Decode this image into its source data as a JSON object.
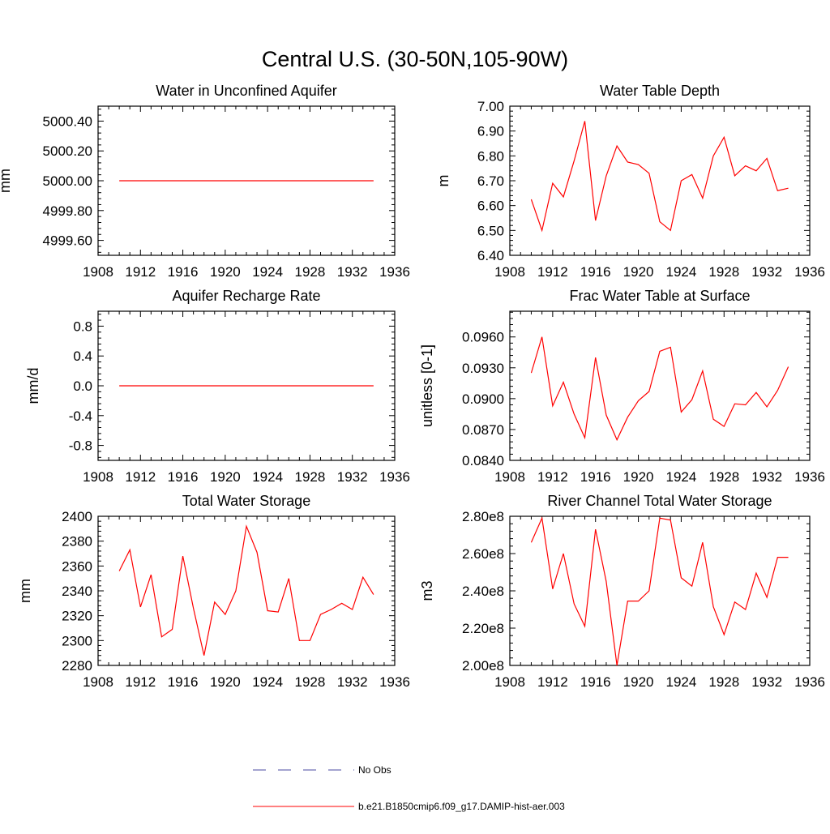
{
  "figure": {
    "title": "Central U.S. (30-50N,105-90W)"
  },
  "legend": {
    "items": [
      {
        "label": "No Obs",
        "color": "#4a4aa0",
        "style": "dashed"
      },
      {
        "label": "b.e21.B1850cmip6.f09_g17.DAMIP-hist-aer.003",
        "color": "#ff0000",
        "style": "solid"
      }
    ]
  },
  "chart_data": [
    {
      "type": "line",
      "title": "Water in Unconfined Aquifer",
      "ylabel": "mm",
      "xlim": [
        1908,
        1936
      ],
      "ylim": [
        4999.5,
        5000.5
      ],
      "xticks": [
        "1908",
        "1912",
        "1916",
        "1920",
        "1924",
        "1928",
        "1932",
        "1936"
      ],
      "yticks": [
        "4999.60",
        "4999.80",
        "5000.00",
        "5000.20",
        "5000.40"
      ],
      "series": [
        {
          "color": "#ff0000",
          "x": [
            1910,
            1911,
            1912,
            1913,
            1914,
            1915,
            1916,
            1917,
            1918,
            1919,
            1920,
            1921,
            1922,
            1923,
            1924,
            1925,
            1926,
            1927,
            1928,
            1929,
            1930,
            1931,
            1932,
            1933,
            1934
          ],
          "values": [
            5000,
            5000,
            5000,
            5000,
            5000,
            5000,
            5000,
            5000,
            5000,
            5000,
            5000,
            5000,
            5000,
            5000,
            5000,
            5000,
            5000,
            5000,
            5000,
            5000,
            5000,
            5000,
            5000,
            5000,
            5000
          ]
        }
      ]
    },
    {
      "type": "line",
      "title": "Water Table Depth",
      "ylabel": "m",
      "xlim": [
        1908,
        1936
      ],
      "ylim": [
        6.4,
        7.0
      ],
      "xticks": [
        "1908",
        "1912",
        "1916",
        "1920",
        "1924",
        "1928",
        "1932",
        "1936"
      ],
      "yticks": [
        "6.40",
        "6.50",
        "6.60",
        "6.70",
        "6.80",
        "6.90",
        "7.00"
      ],
      "series": [
        {
          "color": "#ff0000",
          "x": [
            1910,
            1911,
            1912,
            1913,
            1914,
            1915,
            1916,
            1917,
            1918,
            1919,
            1920,
            1921,
            1922,
            1923,
            1924,
            1925,
            1926,
            1927,
            1928,
            1929,
            1930,
            1931,
            1932,
            1933,
            1934
          ],
          "values": [
            6.625,
            6.5,
            6.69,
            6.635,
            6.78,
            6.94,
            6.54,
            6.72,
            6.84,
            6.775,
            6.765,
            6.73,
            6.535,
            6.5,
            6.7,
            6.725,
            6.63,
            6.8,
            6.875,
            6.72,
            6.76,
            6.74,
            6.79,
            6.66,
            6.67
          ]
        }
      ]
    },
    {
      "type": "line",
      "title": "Aquifer Recharge Rate",
      "ylabel": "mm/d",
      "xlim": [
        1908,
        1936
      ],
      "ylim": [
        -1.0,
        1.0
      ],
      "xticks": [
        "1908",
        "1912",
        "1916",
        "1920",
        "1924",
        "1928",
        "1932",
        "1936"
      ],
      "yticks": [
        "-0.8",
        "-0.4",
        "0.0",
        "0.4",
        "0.8"
      ],
      "series": [
        {
          "color": "#ff0000",
          "x": [
            1910,
            1911,
            1912,
            1913,
            1914,
            1915,
            1916,
            1917,
            1918,
            1919,
            1920,
            1921,
            1922,
            1923,
            1924,
            1925,
            1926,
            1927,
            1928,
            1929,
            1930,
            1931,
            1932,
            1933,
            1934
          ],
          "values": [
            0,
            0,
            0,
            0,
            0,
            0,
            0,
            0,
            0,
            0,
            0,
            0,
            0,
            0,
            0,
            0,
            0,
            0,
            0,
            0,
            0,
            0,
            0,
            0,
            0
          ]
        }
      ]
    },
    {
      "type": "line",
      "title": "Frac Water Table at Surface",
      "ylabel": "unitless [0-1]",
      "xlim": [
        1908,
        1936
      ],
      "ylim": [
        0.084,
        0.0985
      ],
      "xticks": [
        "1908",
        "1912",
        "1916",
        "1920",
        "1924",
        "1928",
        "1932",
        "1936"
      ],
      "yticks": [
        "0.0840",
        "0.0870",
        "0.0900",
        "0.0930",
        "0.0960"
      ],
      "series": [
        {
          "color": "#ff0000",
          "x": [
            1910,
            1911,
            1912,
            1913,
            1914,
            1915,
            1916,
            1917,
            1918,
            1919,
            1920,
            1921,
            1922,
            1923,
            1924,
            1925,
            1926,
            1927,
            1928,
            1929,
            1930,
            1931,
            1932,
            1933,
            1934
          ],
          "values": [
            0.0925,
            0.096,
            0.0893,
            0.0916,
            0.0885,
            0.0862,
            0.094,
            0.0884,
            0.086,
            0.0882,
            0.0898,
            0.0907,
            0.0946,
            0.095,
            0.0887,
            0.0899,
            0.0927,
            0.088,
            0.0873,
            0.0895,
            0.0894,
            0.0906,
            0.0892,
            0.0908,
            0.0931
          ]
        }
      ]
    },
    {
      "type": "line",
      "title": "Total Water Storage",
      "ylabel": "mm",
      "xlim": [
        1908,
        1936
      ],
      "ylim": [
        2280,
        2400
      ],
      "xticks": [
        "1908",
        "1912",
        "1916",
        "1920",
        "1924",
        "1928",
        "1932",
        "1936"
      ],
      "yticks": [
        "2280",
        "2300",
        "2320",
        "2340",
        "2360",
        "2380",
        "2400"
      ],
      "series": [
        {
          "color": "#ff0000",
          "x": [
            1910,
            1911,
            1912,
            1913,
            1914,
            1915,
            1916,
            1917,
            1918,
            1919,
            1920,
            1921,
            1922,
            1923,
            1924,
            1925,
            1926,
            1927,
            1928,
            1929,
            1930,
            1931,
            1932,
            1933,
            1934
          ],
          "values": [
            2356,
            2373,
            2327,
            2353,
            2303,
            2309,
            2368,
            2326,
            2288,
            2331,
            2321,
            2340,
            2392,
            2371,
            2324,
            2323,
            2350,
            2300,
            2300,
            2321,
            2325,
            2330,
            2325,
            2351,
            2337
          ]
        }
      ]
    },
    {
      "type": "line",
      "title": "River Channel Total Water Storage",
      "ylabel": "m3",
      "xlim": [
        1908,
        1936
      ],
      "ylim": [
        200000000,
        280000000
      ],
      "xticks": [
        "1908",
        "1912",
        "1916",
        "1920",
        "1924",
        "1928",
        "1932",
        "1936"
      ],
      "yticks": [
        "2.00e8",
        "2.20e8",
        "2.40e8",
        "2.60e8",
        "2.80e8"
      ],
      "series": [
        {
          "color": "#ff0000",
          "x": [
            1910,
            1911,
            1912,
            1913,
            1914,
            1915,
            1916,
            1917,
            1918,
            1919,
            1920,
            1921,
            1922,
            1923,
            1924,
            1925,
            1926,
            1927,
            1928,
            1929,
            1930,
            1931,
            1932,
            1933,
            1934
          ],
          "values": [
            266000000,
            279000000,
            241000000,
            260000000,
            233000000,
            221000000,
            273000000,
            245000000,
            200000000,
            234500000,
            234500000,
            240000000,
            279000000,
            278000000,
            247000000,
            242500000,
            266000000,
            231500000,
            216500000,
            234000000,
            230000000,
            249500000,
            236500000,
            258000000,
            258000000
          ]
        }
      ]
    }
  ]
}
